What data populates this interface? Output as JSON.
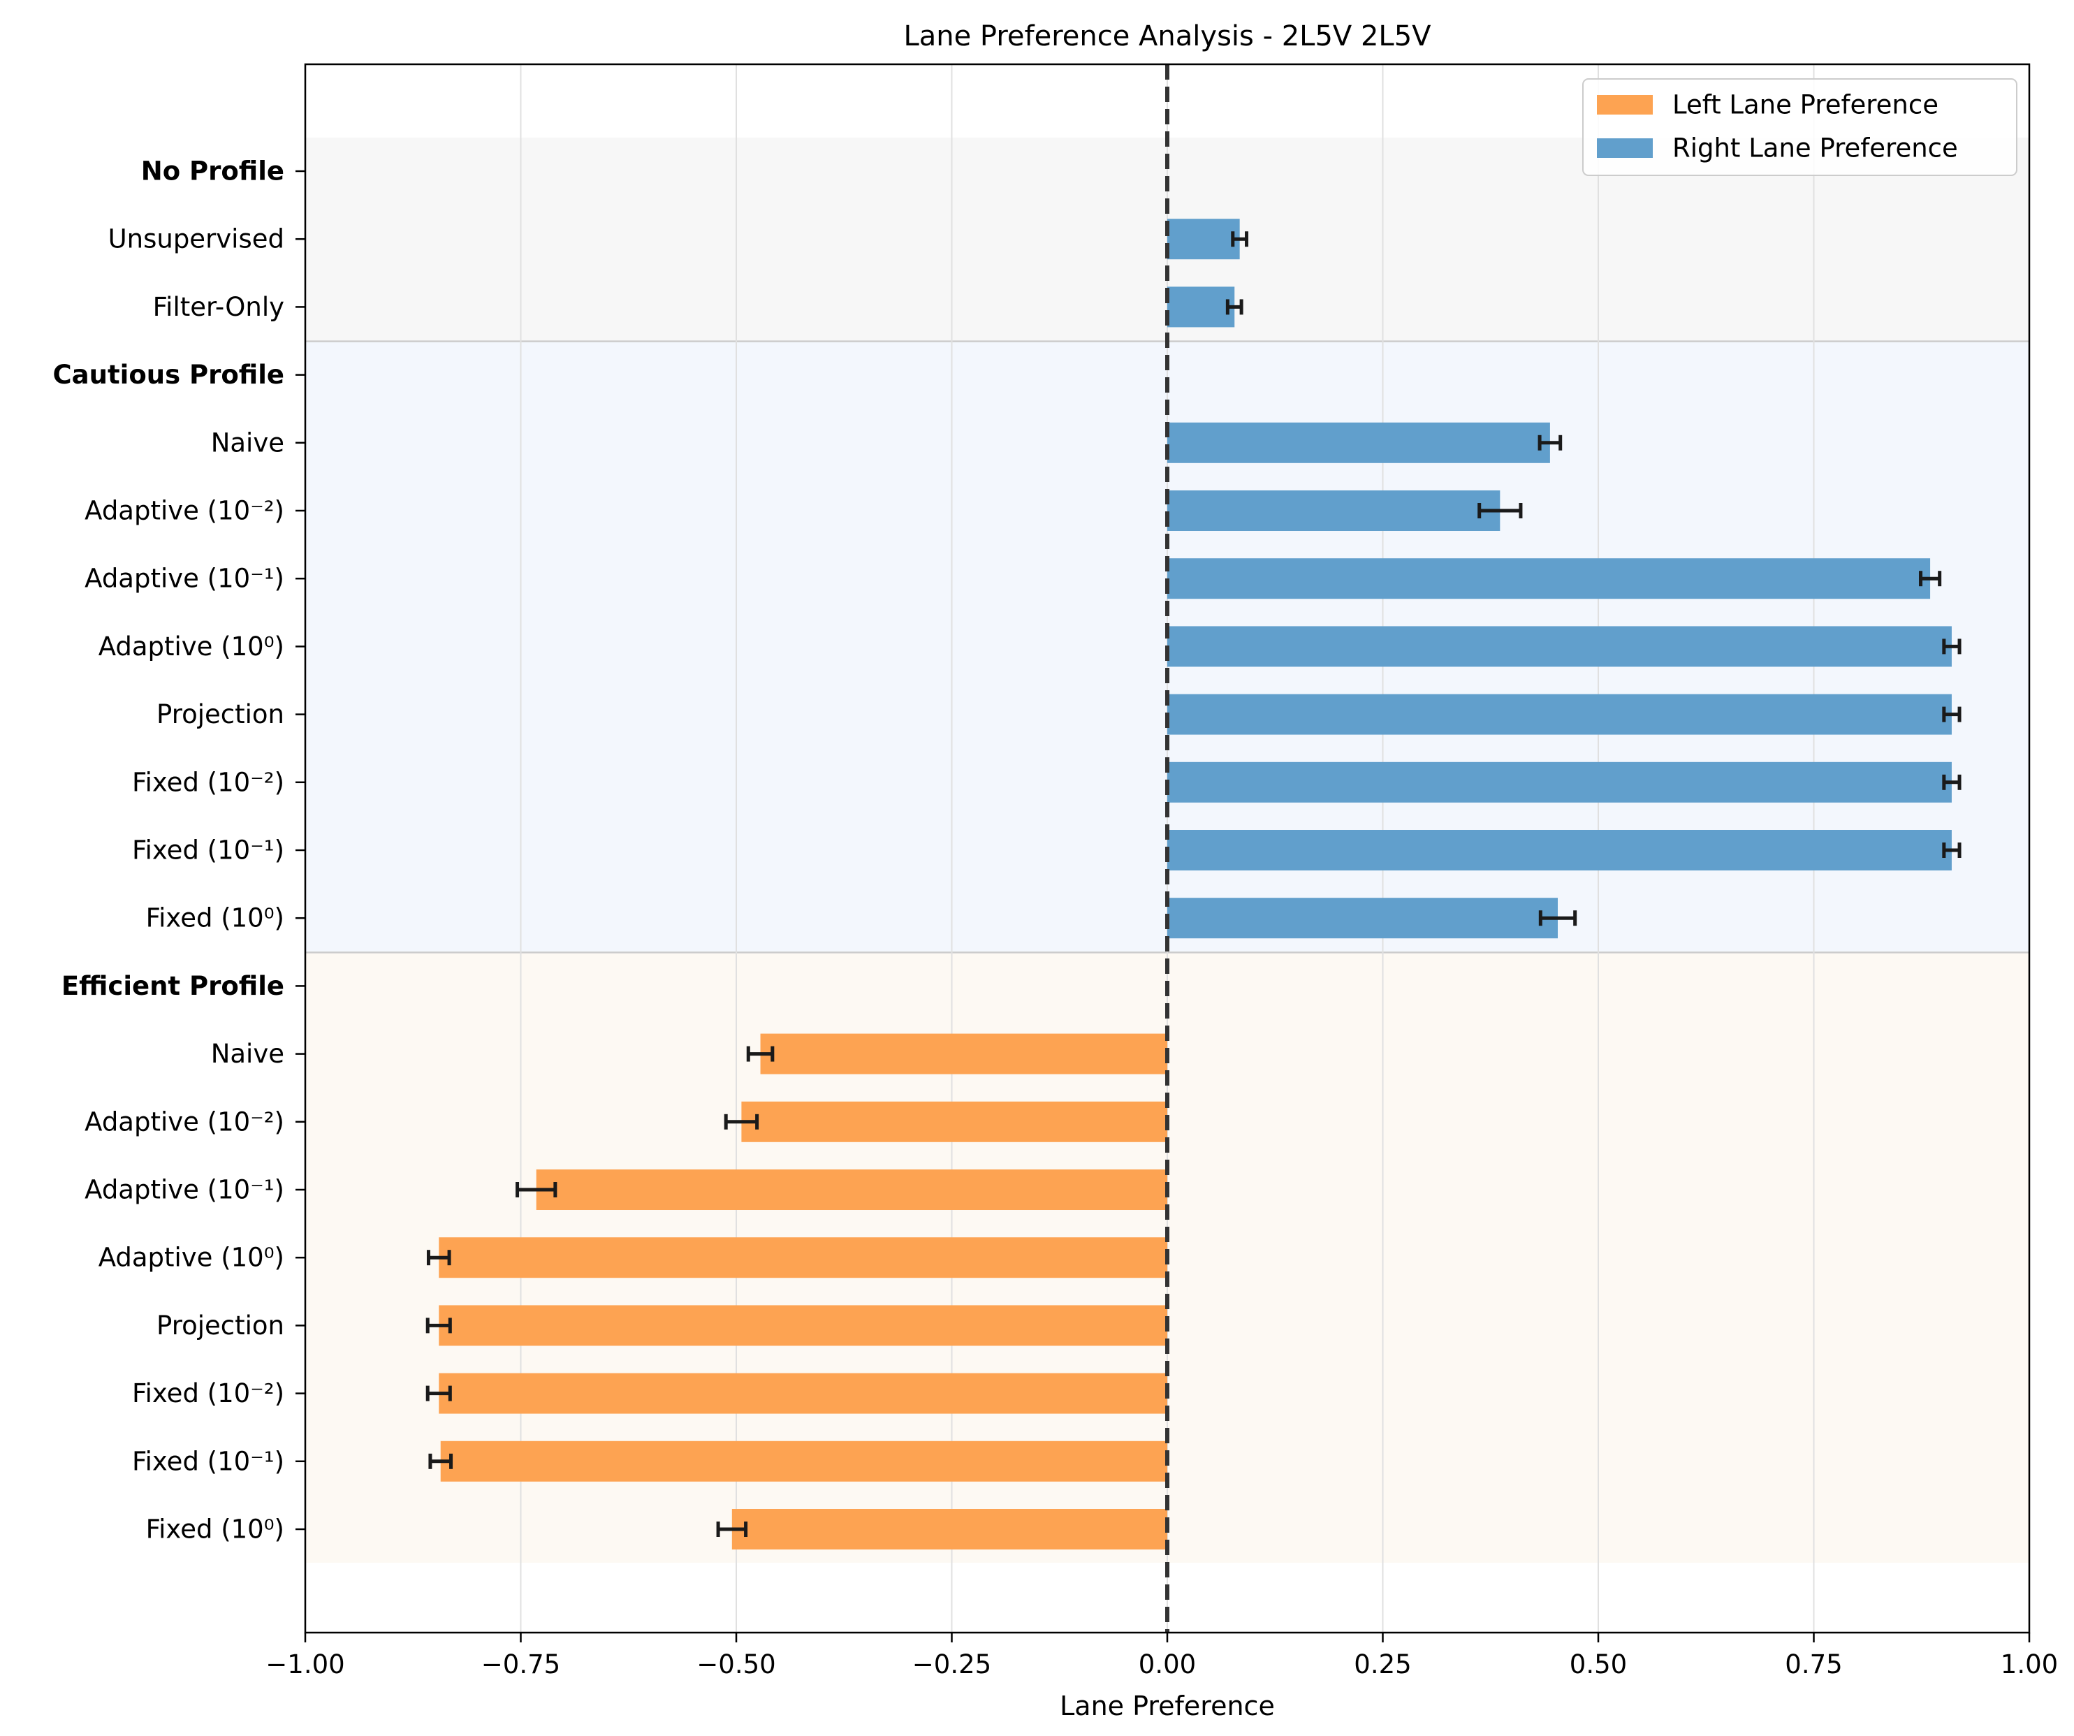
{
  "chart_data": {
    "type": "bar",
    "orientation": "horizontal",
    "title": "Lane Preference Analysis - 2L5V 2L5V",
    "xlabel": "Lane Preference",
    "ylabel": "",
    "xlim": [
      -1.0,
      1.0
    ],
    "xticks": [
      -1.0,
      -0.75,
      -0.5,
      -0.25,
      0.0,
      0.25,
      0.5,
      0.75,
      1.0
    ],
    "xtick_labels": [
      "−1.00",
      "−0.75",
      "−0.50",
      "−0.25",
      "0.00",
      "0.25",
      "0.50",
      "0.75",
      "1.00"
    ],
    "grid": "x",
    "reference_line": 0.0,
    "legend": {
      "position": "top-right",
      "items": [
        {
          "label": "Left Lane Preference",
          "color": "#fda352"
        },
        {
          "label": "Right Lane Preference",
          "color": "#619fcc"
        }
      ]
    },
    "colors": {
      "left": "#fda352",
      "right": "#619fcc",
      "errorbar": "#1a1a1a"
    },
    "groups": [
      {
        "label": "No Profile",
        "background": "#f7f7f7",
        "rows": [
          {
            "label": "Unsupervised",
            "value": 0.084,
            "error": 0.008
          },
          {
            "label": "Filter-Only",
            "value": 0.078,
            "error": 0.008
          }
        ]
      },
      {
        "label": "Cautious Profile",
        "background": "#f3f7fd",
        "rows": [
          {
            "label": "Naive",
            "value": 0.444,
            "error": 0.012
          },
          {
            "label": "Adaptive (10⁻²)",
            "value": 0.386,
            "error": 0.024
          },
          {
            "label": "Adaptive (10⁻¹)",
            "value": 0.885,
            "error": 0.011
          },
          {
            "label": "Adaptive (10⁰)",
            "value": 0.91,
            "error": 0.009
          },
          {
            "label": "Projection",
            "value": 0.91,
            "error": 0.009
          },
          {
            "label": "Fixed (10⁻²)",
            "value": 0.91,
            "error": 0.009
          },
          {
            "label": "Fixed (10⁻¹)",
            "value": 0.91,
            "error": 0.009
          },
          {
            "label": "Fixed (10⁰)",
            "value": 0.453,
            "error": 0.02
          }
        ]
      },
      {
        "label": "Efficient Profile",
        "background": "#fdf9f3",
        "rows": [
          {
            "label": "Naive",
            "value": -0.472,
            "error": 0.014
          },
          {
            "label": "Adaptive (10⁻²)",
            "value": -0.494,
            "error": 0.018
          },
          {
            "label": "Adaptive (10⁻¹)",
            "value": -0.732,
            "error": 0.022
          },
          {
            "label": "Adaptive (10⁰)",
            "value": -0.845,
            "error": 0.012
          },
          {
            "label": "Projection",
            "value": -0.845,
            "error": 0.013
          },
          {
            "label": "Fixed (10⁻²)",
            "value": -0.845,
            "error": 0.013
          },
          {
            "label": "Fixed (10⁻¹)",
            "value": -0.843,
            "error": 0.012
          },
          {
            "label": "Fixed (10⁰)",
            "value": -0.505,
            "error": 0.016
          }
        ]
      }
    ]
  }
}
